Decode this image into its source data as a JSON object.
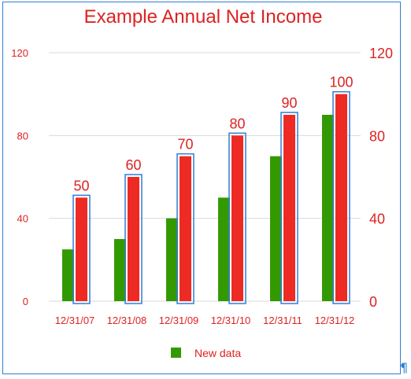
{
  "chart_data": {
    "type": "bar",
    "title": "Example Annual Net Income",
    "categories": [
      "12/31/07",
      "12/31/08",
      "12/31/09",
      "12/31/10",
      "12/31/11",
      "12/31/12"
    ],
    "series": [
      {
        "name": "New data",
        "values": [
          25,
          30,
          40,
          50,
          70,
          90
        ],
        "color": "#339900",
        "axis": "left"
      },
      {
        "values": [
          50,
          60,
          70,
          80,
          90,
          100
        ],
        "color": "#ee2a24",
        "axis": "right",
        "data_labels": true,
        "selected": true
      }
    ],
    "y_left": {
      "range": [
        0,
        120
      ],
      "ticks": [
        "0",
        "40",
        "80",
        "120"
      ]
    },
    "y_right": {
      "range": [
        0,
        120
      ],
      "ticks": [
        "0",
        "40",
        "80",
        "120"
      ]
    },
    "grid": true,
    "legend_position": "bottom",
    "colors": {
      "title": "#dd2222",
      "axis_text": "#dd2222",
      "grid": "#d9d9d9",
      "selection": "#2f7fd6"
    }
  },
  "pilcrow": "¶"
}
